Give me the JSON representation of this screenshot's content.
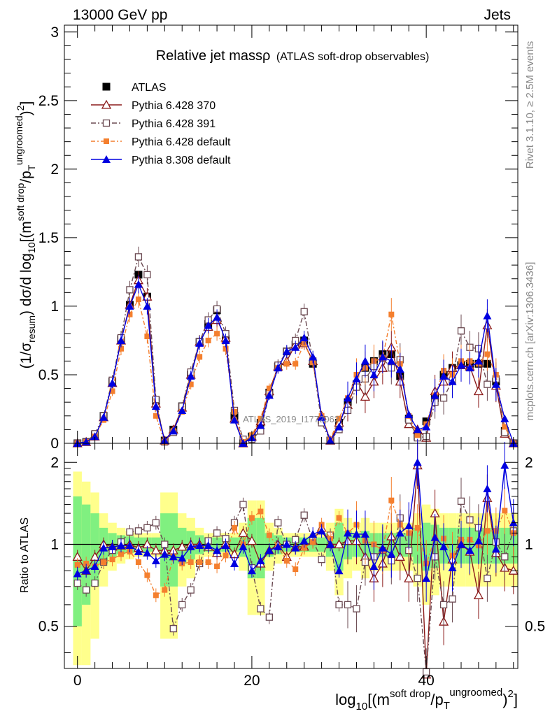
{
  "header": {
    "left": "13000 GeV pp",
    "right": "Jets"
  },
  "side_text": {
    "top": "Rivet 3.1.10, ≥ 2.5M events",
    "bottom": "mcplots.cern.ch [arXiv:1306.3436]"
  },
  "watermark": "ATLAS_2019_I1772062",
  "colors": {
    "atlas": "#000000",
    "p370": "#8b1a1a",
    "p391": "#6b4a52",
    "p6def": "#f47f2e",
    "p8def": "#0000e0",
    "band_yellow": "#ffff8c",
    "band_green": "#80f080"
  },
  "chart_data": [
    {
      "type": "line",
      "title_main": "Relative jet massρ",
      "title_sub": "(ATLAS soft-drop observables)",
      "ylabel": "(1/σresum) dσ/d log10[(m soft drop/pT ungroomed)2]",
      "ylabel_parts": {
        "a": "(1/σ",
        "b": "resum",
        "c": ") dσ/d log",
        "d": "10",
        "e": "[(m",
        "f": "soft drop",
        "g": "/p",
        "h": "T",
        "i": "ungroomed",
        "j": ")",
        "k": "2",
        "l": "]"
      },
      "xlim": [
        -1.5,
        50.5
      ],
      "ylim": [
        0,
        3.05
      ],
      "yticks": [
        "0",
        "0.5",
        "1",
        "1.5",
        "2",
        "2.5",
        "3"
      ],
      "legend_position": "top-left",
      "x": [
        0,
        1,
        2,
        3,
        4,
        5,
        6,
        7,
        8,
        9,
        10,
        11,
        12,
        13,
        14,
        15,
        16,
        17,
        18,
        19,
        20,
        21,
        22,
        23,
        24,
        25,
        26,
        27,
        28,
        29,
        30,
        31,
        32,
        33,
        34,
        35,
        36,
        37,
        38,
        39,
        40,
        41,
        42,
        43,
        44,
        45,
        46,
        47,
        48,
        49,
        50
      ],
      "series": [
        {
          "name": "ATLAS",
          "key": "atlas",
          "marker": "square-filled",
          "values": [
            0.0,
            0.01,
            0.06,
            0.2,
            0.45,
            0.76,
            1.01,
            1.23,
            1.07,
            0.31,
            0.02,
            0.1,
            0.27,
            0.5,
            0.74,
            0.87,
            0.97,
            0.76,
            0.2,
            0.0,
            0.05,
            0.15,
            0.37,
            0.56,
            0.67,
            0.72,
            0.75,
            0.58,
            0.17,
            0.02,
            0.15,
            0.3,
            0.43,
            0.55,
            0.6,
            0.65,
            0.65,
            0.49,
            0.18,
            0.05,
            0.16,
            0.33,
            0.5,
            0.55,
            0.57,
            0.58,
            0.58,
            0.58,
            0.45,
            0.09,
            0.0
          ]
        },
        {
          "name": "Pythia 6.428 370",
          "key": "p370",
          "marker": "triangle-open",
          "values": [
            0.0,
            0.01,
            0.05,
            0.19,
            0.44,
            0.75,
            1.01,
            1.19,
            1.07,
            0.29,
            0.02,
            0.1,
            0.26,
            0.5,
            0.74,
            0.85,
            0.9,
            0.77,
            0.18,
            0.0,
            0.05,
            0.16,
            0.38,
            0.56,
            0.6,
            0.72,
            0.73,
            0.6,
            0.2,
            0.02,
            0.15,
            0.28,
            0.45,
            0.34,
            0.45,
            0.55,
            0.7,
            0.45,
            0.14,
            0.1,
            0.04,
            0.38,
            0.45,
            0.55,
            0.57,
            0.56,
            0.38,
            0.86,
            0.42,
            0.07,
            0.0
          ]
        },
        {
          "name": "Pythia 6.428 391",
          "key": "p391",
          "marker": "square-open",
          "values": [
            0.0,
            0.01,
            0.07,
            0.2,
            0.46,
            0.77,
            1.12,
            1.36,
            1.23,
            0.32,
            0.01,
            0.08,
            0.27,
            0.52,
            0.74,
            0.9,
            0.98,
            0.8,
            0.24,
            0.03,
            0.03,
            0.09,
            0.36,
            0.57,
            0.67,
            0.75,
            0.96,
            0.6,
            0.15,
            0.02,
            0.1,
            0.24,
            0.41,
            0.47,
            0.56,
            0.62,
            0.55,
            0.61,
            0.17,
            0.04,
            0.05,
            0.3,
            0.33,
            0.46,
            0.82,
            0.7,
            0.69,
            0.43,
            0.47,
            0.08,
            0.0
          ]
        },
        {
          "name": "Pythia 6.428 default",
          "key": "p6def",
          "marker": "square-small-filled",
          "values": [
            0.0,
            0.01,
            0.05,
            0.17,
            0.38,
            0.69,
            0.94,
            1.05,
            0.78,
            0.2,
            0.01,
            0.09,
            0.23,
            0.43,
            0.63,
            0.75,
            0.8,
            0.69,
            0.23,
            0.01,
            0.06,
            0.18,
            0.4,
            0.55,
            0.58,
            0.58,
            0.73,
            0.59,
            0.2,
            0.03,
            0.18,
            0.33,
            0.5,
            0.55,
            0.6,
            0.62,
            0.94,
            0.58,
            0.2,
            0.06,
            0.14,
            0.35,
            0.53,
            0.5,
            0.6,
            0.6,
            0.58,
            0.65,
            0.5,
            0.12,
            0.0
          ]
        },
        {
          "name": "Pythia 8.308 default",
          "key": "p8def",
          "marker": "triangle-filled",
          "values": [
            0.0,
            0.01,
            0.05,
            0.19,
            0.44,
            0.75,
            1.0,
            1.16,
            1.0,
            0.27,
            0.02,
            0.09,
            0.24,
            0.49,
            0.73,
            0.86,
            0.92,
            0.75,
            0.17,
            0.0,
            0.04,
            0.13,
            0.35,
            0.55,
            0.67,
            0.7,
            0.77,
            0.63,
            0.19,
            0.02,
            0.12,
            0.33,
            0.47,
            0.6,
            0.5,
            0.63,
            0.6,
            0.54,
            0.21,
            0.1,
            0.12,
            0.35,
            0.49,
            0.45,
            0.57,
            0.55,
            0.6,
            0.93,
            0.43,
            0.18,
            0.0
          ]
        }
      ]
    },
    {
      "type": "line",
      "ylabel": "Ratio to ATLAS",
      "xlabel": "log10[(m soft drop/pT ungroomed)2]",
      "xlabel_parts": {
        "a": "log",
        "b": "10",
        "c": "[(m",
        "d": "soft drop",
        "e": "/p",
        "f": "T",
        "g": "ungroomed",
        "h": ")",
        "i": "2",
        "j": "]"
      },
      "xlim": [
        -1.5,
        50.5
      ],
      "ylim": [
        0.35,
        2.35
      ],
      "yscale": "log",
      "xticks": [
        "0",
        "20",
        "40"
      ],
      "yticks": [
        "0.5",
        "1",
        "2"
      ],
      "x": [
        0,
        1,
        2,
        3,
        4,
        5,
        6,
        7,
        8,
        9,
        10,
        11,
        12,
        13,
        14,
        15,
        16,
        17,
        18,
        19,
        20,
        21,
        22,
        23,
        24,
        25,
        26,
        27,
        28,
        29,
        30,
        31,
        32,
        33,
        34,
        35,
        36,
        37,
        38,
        39,
        40,
        41,
        42,
        43,
        44,
        45,
        46,
        47,
        48,
        49,
        50
      ],
      "bands": {
        "yellow": [
          0.85,
          0.7,
          0.55,
          0.3,
          0.2,
          0.15,
          0.12,
          0.1,
          0.1,
          0.1,
          0.55,
          0.55,
          0.3,
          0.25,
          0.15,
          0.1,
          0.1,
          0.1,
          0.1,
          0.2,
          0.45,
          0.45,
          0.2,
          0.15,
          0.1,
          0.1,
          0.1,
          0.1,
          0.1,
          0.2,
          0.35,
          0.25,
          0.2,
          0.25,
          0.2,
          0.2,
          0.2,
          0.2,
          0.2,
          0.3,
          0.4,
          0.35,
          0.3,
          0.3,
          0.3,
          0.3,
          0.3,
          0.3,
          0.3,
          0.3,
          0.3
        ],
        "green": [
          0.5,
          0.4,
          0.3,
          0.15,
          0.1,
          0.08,
          0.07,
          0.06,
          0.06,
          0.06,
          0.3,
          0.3,
          0.15,
          0.12,
          0.08,
          0.06,
          0.06,
          0.06,
          0.06,
          0.1,
          0.25,
          0.25,
          0.1,
          0.08,
          0.06,
          0.06,
          0.06,
          0.06,
          0.06,
          0.1,
          0.2,
          0.12,
          0.1,
          0.12,
          0.1,
          0.1,
          0.1,
          0.1,
          0.1,
          0.15,
          0.2,
          0.18,
          0.15,
          0.15,
          0.15,
          0.15,
          0.15,
          0.15,
          0.15,
          0.15,
          0.15
        ]
      },
      "series": [
        {
          "name": "Pythia 6.428 370",
          "key": "p370",
          "marker": "triangle-open",
          "values": [
            0.9,
            0.8,
            0.9,
            1.0,
            0.98,
            0.99,
            1.0,
            0.97,
            1.0,
            0.95,
            0.95,
            0.95,
            0.98,
            1.0,
            1.0,
            0.98,
            0.93,
            1.01,
            0.92,
            1.1,
            1.03,
            0.85,
            0.95,
            1.0,
            0.9,
            0.98,
            0.98,
            1.03,
            1.15,
            1.0,
            1.0,
            1.03,
            1.03,
            0.9,
            0.75,
            0.85,
            1.07,
            0.9,
            0.75,
            1.95,
            0.27,
            1.3,
            0.52,
            0.88,
            1.0,
            0.94,
            0.65,
            1.48,
            0.93,
            0.82,
            0.8
          ]
        },
        {
          "name": "Pythia 6.428 391",
          "key": "p391",
          "marker": "square-open",
          "values": [
            0.72,
            0.68,
            0.72,
            0.86,
            0.95,
            1.02,
            1.11,
            1.12,
            1.15,
            1.2,
            1.0,
            0.49,
            0.6,
            0.68,
            0.85,
            1.03,
            1.1,
            1.05,
            1.2,
            1.4,
            0.82,
            0.58,
            0.54,
            1.2,
            1.0,
            1.04,
            1.28,
            1.03,
            0.88,
            1.08,
            0.6,
            0.6,
            0.58,
            0.86,
            0.9,
            0.95,
            0.87,
            1.25,
            0.95,
            0.75,
            0.34,
            0.9,
            0.6,
            0.63,
            1.44,
            1.23,
            1.15,
            0.75,
            1.02,
            0.9,
            1.12
          ]
        },
        {
          "name": "Pythia 6.428 default",
          "key": "p6def",
          "marker": "square-small-filled",
          "values": [
            0.84,
            0.85,
            0.83,
            0.86,
            0.88,
            0.92,
            0.94,
            0.86,
            0.77,
            0.65,
            0.68,
            0.9,
            0.85,
            0.86,
            0.86,
            0.86,
            0.83,
            0.91,
            1.15,
            1.0,
            1.25,
            1.32,
            1.08,
            0.98,
            0.87,
            0.81,
            0.97,
            1.02,
            1.18,
            1.05,
            1.25,
            1.1,
            1.18,
            1.03,
            1.0,
            0.95,
            1.45,
            1.18,
            1.1,
            1.15,
            0.85,
            1.05,
            1.05,
            0.91,
            1.04,
            1.04,
            0.99,
            1.12,
            1.12,
            1.33,
            1.1
          ]
        },
        {
          "name": "Pythia 8.308 default",
          "key": "p8def",
          "marker": "triangle-filled",
          "values": [
            0.78,
            0.8,
            0.83,
            0.97,
            0.98,
            0.99,
            0.99,
            0.94,
            0.93,
            0.87,
            0.92,
            0.9,
            0.89,
            0.98,
            0.99,
            0.99,
            0.95,
            0.99,
            0.85,
            0.98,
            0.8,
            0.87,
            0.95,
            0.98,
            1.0,
            0.97,
            1.03,
            1.09,
            1.12,
            1.0,
            0.8,
            1.1,
            1.09,
            1.09,
            0.83,
            0.97,
            0.92,
            1.1,
            1.17,
            2.0,
            0.75,
            1.06,
            0.98,
            0.82,
            1.0,
            0.95,
            1.03,
            1.6,
            0.96,
            1.95,
            1.2
          ]
        }
      ]
    }
  ]
}
